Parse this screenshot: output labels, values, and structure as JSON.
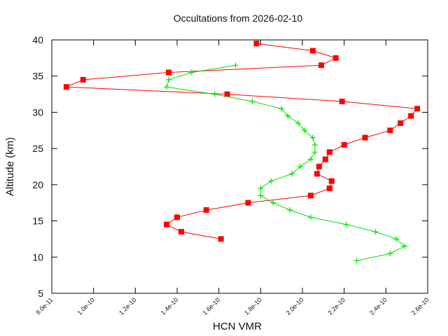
{
  "chart_data": {
    "type": "line",
    "title": "Occultations from 2026-02-10",
    "xlabel": "HCN VMR",
    "ylabel": "Altitude (km)",
    "xlim": [
      8e-11,
      2.6e-10
    ],
    "ylim": [
      5,
      40
    ],
    "x_ticks": [
      "8.0e-11",
      "1.0e-10",
      "1.2e-10",
      "1.4e-10",
      "1.6e-10",
      "1.8e-10",
      "2.0e-10",
      "2.2e-10",
      "2.4e-10",
      "2.6e-10"
    ],
    "x_tick_values": [
      8e-11,
      1e-10,
      1.2e-10,
      1.4e-10,
      1.6e-10,
      1.8e-10,
      2e-10,
      2.2e-10,
      2.4e-10,
      2.6e-10
    ],
    "y_ticks": [
      "5",
      "10",
      "15",
      "20",
      "25",
      "30",
      "35",
      "40"
    ],
    "y_tick_values": [
      5,
      10,
      15,
      20,
      25,
      30,
      35,
      40
    ],
    "grid": false,
    "legend": null,
    "series": [
      {
        "name": "occultation-1",
        "color": "#ff0000",
        "marker": "filled-square",
        "points": [
          [
            1.78e-10,
            39.5
          ],
          [
            2.05e-10,
            38.5
          ],
          [
            2.16e-10,
            37.5
          ],
          [
            2.09e-10,
            36.5
          ],
          [
            1.36e-10,
            35.5
          ],
          [
            9.5e-11,
            34.5
          ],
          [
            8.7e-11,
            33.5
          ],
          [
            1.64e-10,
            32.5
          ],
          [
            2.19e-10,
            31.5
          ],
          [
            2.55e-10,
            30.5
          ],
          [
            2.52e-10,
            29.5
          ],
          [
            2.47e-10,
            28.5
          ],
          [
            2.42e-10,
            27.5
          ],
          [
            2.3e-10,
            26.5
          ],
          [
            2.2e-10,
            25.5
          ],
          [
            2.13e-10,
            24.5
          ],
          [
            2.11e-10,
            23.5
          ],
          [
            2.08e-10,
            22.5
          ],
          [
            2.07e-10,
            21.5
          ],
          [
            2.14e-10,
            20.5
          ],
          [
            2.13e-10,
            19.5
          ],
          [
            2.04e-10,
            18.5
          ],
          [
            1.74e-10,
            17.5
          ],
          [
            1.54e-10,
            16.5
          ],
          [
            1.4e-10,
            15.5
          ],
          [
            1.35e-10,
            14.5
          ],
          [
            1.42e-10,
            13.5
          ],
          [
            1.61e-10,
            12.5
          ]
        ]
      },
      {
        "name": "occultation-2",
        "color": "#00e000",
        "marker": "plus",
        "points": [
          [
            1.68e-10,
            36.5
          ],
          [
            1.47e-10,
            35.5
          ],
          [
            1.36e-10,
            34.5
          ],
          [
            1.35e-10,
            33.5
          ],
          [
            1.58e-10,
            32.5
          ],
          [
            1.76e-10,
            31.5
          ],
          [
            1.9e-10,
            30.5
          ],
          [
            1.93e-10,
            29.5
          ],
          [
            1.98e-10,
            28.5
          ],
          [
            2.01e-10,
            27.5
          ],
          [
            2.05e-10,
            26.5
          ],
          [
            2.06e-10,
            25.5
          ],
          [
            2.06e-10,
            24.5
          ],
          [
            2.04e-10,
            23.5
          ],
          [
            1.99e-10,
            22.5
          ],
          [
            1.95e-10,
            21.5
          ],
          [
            1.85e-10,
            20.5
          ],
          [
            1.8e-10,
            19.5
          ],
          [
            1.8e-10,
            18.5
          ],
          [
            1.86e-10,
            17.5
          ],
          [
            1.94e-10,
            16.5
          ],
          [
            2.04e-10,
            15.5
          ],
          [
            2.21e-10,
            14.5
          ],
          [
            2.35e-10,
            13.5
          ],
          [
            2.45e-10,
            12.5
          ],
          [
            2.49e-10,
            11.5
          ],
          [
            2.42e-10,
            10.5
          ],
          [
            2.26e-10,
            9.5
          ]
        ]
      }
    ]
  }
}
